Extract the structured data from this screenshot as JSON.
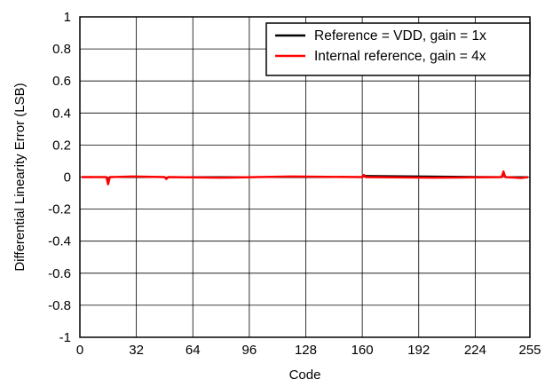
{
  "chart_data": {
    "type": "line",
    "title": "",
    "xlabel": "Code",
    "ylabel": "Differential Linearity Error (LSB)",
    "xlim": [
      0,
      255
    ],
    "ylim": [
      -1,
      1
    ],
    "x_ticks": [
      0,
      32,
      64,
      96,
      128,
      160,
      192,
      224,
      255
    ],
    "y_ticks": [
      -1,
      -0.8,
      -0.6,
      -0.4,
      -0.2,
      0,
      0.2,
      0.4,
      0.6,
      0.8,
      1
    ],
    "x_tick_labels": [
      "0",
      "32",
      "64",
      "96",
      "128",
      "160",
      "192",
      "224",
      "255"
    ],
    "y_tick_labels": [
      "-1",
      "-0.8",
      "-0.6",
      "-0.4",
      "-0.2",
      "0",
      "0.2",
      "0.4",
      "0.6",
      "0.8",
      "1"
    ],
    "grid": true,
    "legend_position": "top-right",
    "series": [
      {
        "name": "Reference = VDD, gain = 1x",
        "color": "#000000",
        "x": [
          1,
          15,
          16,
          17,
          48,
          49,
          50,
          160,
          161,
          239,
          240,
          241,
          254
        ],
        "y": [
          0,
          0,
          -0.02,
          0,
          0,
          -0.008,
          0,
          0,
          0.008,
          0,
          0.02,
          0,
          0
        ]
      },
      {
        "name": "Internal reference, gain = 4x",
        "color": "#ff0000",
        "x": [
          1,
          15,
          16,
          17,
          30,
          48,
          49,
          50,
          80,
          120,
          160,
          161,
          162,
          200,
          239,
          240,
          241,
          250,
          254
        ],
        "y": [
          0,
          0,
          -0.045,
          0,
          0.004,
          0,
          -0.012,
          0,
          -0.004,
          0.004,
          0,
          0.014,
          0,
          -0.004,
          0,
          0.035,
          0,
          -0.006,
          0
        ]
      }
    ]
  }
}
